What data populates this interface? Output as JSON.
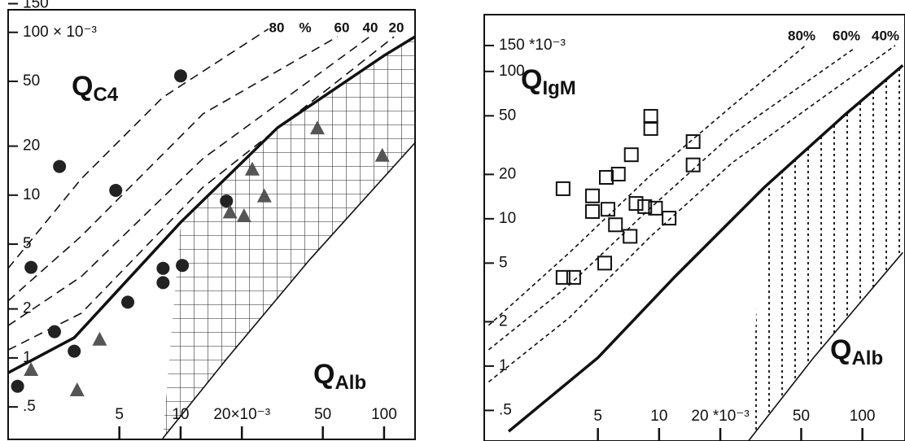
{
  "chart_data": [
    {
      "type": "scatter",
      "x_log": true,
      "y_log": true,
      "xlim": [
        1.42,
        142
      ],
      "ylim": [
        0.316,
        158
      ],
      "xticks": [
        5,
        10,
        {
          "value": 20,
          "label": "20×10⁻³"
        },
        50,
        100
      ],
      "yticks": [
        150,
        {
          "value": 100,
          "label": "100 × 10⁻³"
        },
        50,
        20,
        10,
        5,
        2,
        1,
        {
          "value": 0.5,
          "label": ".5"
        }
      ],
      "y_label": {
        "text": "Q",
        "sub": "C4"
      },
      "x_label": {
        "text": "Q",
        "sub": "Alb"
      },
      "hatch": "grid",
      "series": [
        {
          "marker": "circle",
          "color": "#222222",
          "x": [
            10,
            2.54,
            4.8,
            1.84,
            2.4,
            3.0,
            1.58,
            5.5,
            8.2,
            8.2,
            10.2,
            16.8
          ],
          "values": [
            54,
            15,
            10.7,
            3.6,
            1.45,
            1.1,
            0.67,
            2.2,
            3.55,
            2.9,
            3.7,
            9.2
          ]
        },
        {
          "marker": "triangle",
          "color": "#555555",
          "x": [
            1.84,
            3.1,
            4.0,
            22.5,
            17.5,
            20.5,
            25.8,
            47,
            98
          ],
          "values": [
            0.84,
            0.63,
            1.29,
            14.3,
            7.8,
            7.4,
            9.8,
            25.6,
            17.4
          ]
        }
      ],
      "curves": [
        {
          "style": "thick",
          "x": [
            1.42,
            3,
            10,
            30,
            100,
            142
          ],
          "values": [
            0.81,
            1.33,
            6.8,
            26,
            72,
            94
          ]
        },
        {
          "style": "solid",
          "x": [
            8.16,
            17,
            43,
            142
          ],
          "values": [
            0.32,
            1,
            4,
            21
          ]
        },
        {
          "style": "dashed",
          "x": [
            1.42,
            3.25,
            8.16,
            27
          ],
          "values": [
            3.55,
            12.6,
            39.8,
            105
          ]
        },
        {
          "style": "dashed",
          "x": [
            1.42,
            3.25,
            12.9,
            59
          ],
          "values": [
            2.24,
            5.6,
            31.6,
            94
          ]
        },
        {
          "style": "dashed",
          "x": [
            1.42,
            3.25,
            12.9,
            85
          ],
          "values": [
            1.58,
            3.16,
            16.8,
            94
          ]
        },
        {
          "style": "dashed",
          "x": [
            1.42,
            3.25,
            12.9,
            112
          ],
          "values": [
            1.12,
            1.88,
            11.2,
            94
          ]
        }
      ],
      "curve_labels": [
        "80",
        "%",
        "60",
        "40",
        "20"
      ]
    },
    {
      "type": "scatter",
      "x_log": true,
      "y_log": true,
      "xlim": [
        1.38,
        162
      ],
      "ylim": [
        0.31,
        243
      ],
      "xticks": [
        5,
        10,
        {
          "value": 20,
          "label": "20 *10⁻³"
        },
        50,
        100
      ],
      "yticks": [
        {
          "value": 150,
          "label": "150 *10⁻³"
        },
        100,
        50,
        20,
        10,
        5,
        2,
        1,
        {
          "value": 0.5,
          "label": ".5"
        }
      ],
      "y_label": {
        "text": "Q",
        "sub": "IgM"
      },
      "x_label": {
        "text": "Q",
        "sub": "Alb"
      },
      "hatch": "dotted",
      "series": [
        {
          "marker": "square",
          "color": "#111111",
          "x": [
            3.37,
            4.7,
            5.5,
            6.3,
            7.3,
            9.1,
            9.1,
            14.7,
            14.7,
            4.7,
            5.6,
            6.1,
            7.2,
            7.7,
            8.5,
            9.6,
            11.2,
            5.4,
            3.37,
            3.8
          ],
          "values": [
            16,
            14.3,
            19.1,
            20.1,
            27.2,
            49.6,
            41,
            33.4,
            23.2,
            11.2,
            11.6,
            9.1,
            7.6,
            12.7,
            12.1,
            11.8,
            10.1,
            5.0,
            4.0,
            4.0
          ]
        }
      ],
      "curves": [
        {
          "style": "thick",
          "x": [
            1.82,
            5.0,
            12.0,
            33,
            83,
            158
          ],
          "values": [
            0.36,
            1.14,
            4.06,
            16.4,
            51.5,
            110
          ]
        },
        {
          "style": "solid",
          "x": [
            27.5,
            57.5,
            158
          ],
          "values": [
            0.31,
            1.14,
            5.9
          ]
        },
        {
          "style": "dashed",
          "x": [
            1.45,
            3.63,
            9.1,
            22.9,
            52.5
          ],
          "values": [
            1.89,
            5.9,
            19.8,
            58.5,
            150
          ]
        },
        {
          "style": "dashed",
          "x": [
            1.45,
            3.63,
            9.1,
            22.9,
            91
          ],
          "values": [
            1.29,
            3.57,
            11.9,
            37.5,
            143
          ]
        },
        {
          "style": "dashed",
          "x": [
            1.45,
            3.63,
            9.1,
            22.9,
            145
          ],
          "values": [
            0.78,
            2.14,
            7.6,
            24,
            150
          ]
        }
      ],
      "curve_labels": [
        "80%",
        "60%",
        "40%"
      ]
    }
  ]
}
